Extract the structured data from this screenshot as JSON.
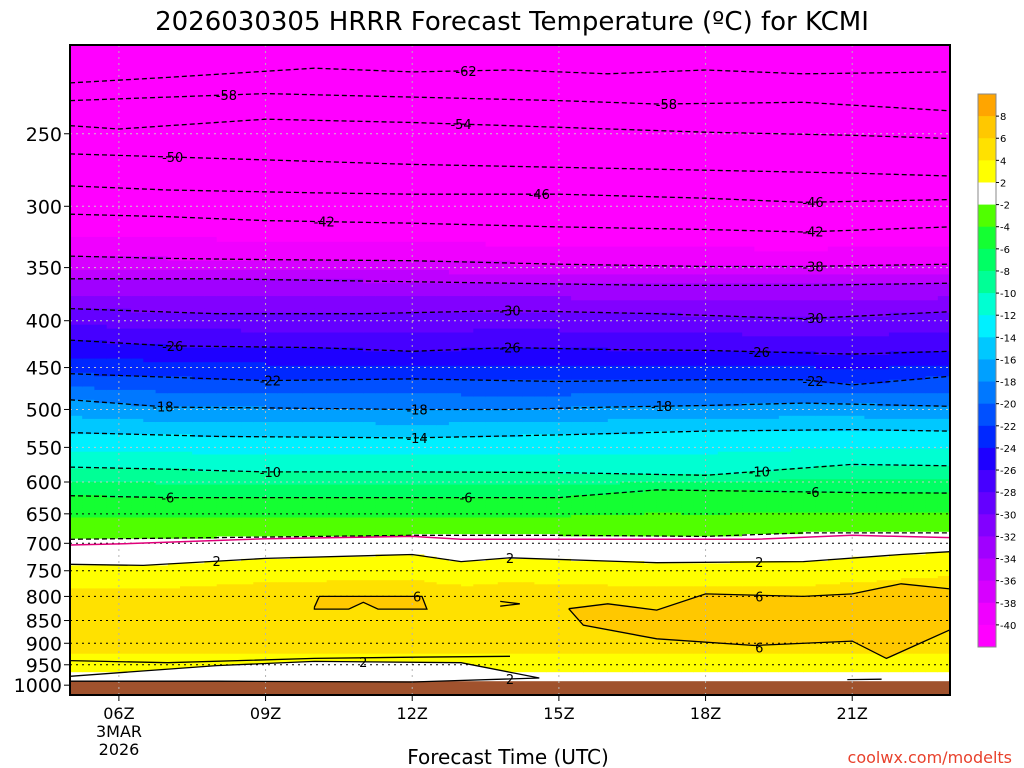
{
  "chart_data": {
    "type": "area",
    "title": "2026030305 HRRR Forecast Temperature (ºC) for KCMI",
    "xlabel": "Forecast Time (UTC)",
    "ylabel": "",
    "credit": "coolwx.com/modelts",
    "date_label": [
      "3MAR",
      "2026"
    ],
    "x_ticks": [
      {
        "hour": 6,
        "label": "06Z"
      },
      {
        "hour": 9,
        "label": "09Z"
      },
      {
        "hour": 12,
        "label": "12Z"
      },
      {
        "hour": 15,
        "label": "15Z"
      },
      {
        "hour": 18,
        "label": "18Z"
      },
      {
        "hour": 21,
        "label": "21Z"
      }
    ],
    "xlim": [
      5,
      23
    ],
    "y_ticks": [
      250,
      300,
      350,
      400,
      450,
      500,
      550,
      600,
      650,
      700,
      750,
      800,
      850,
      900,
      950,
      1000
    ],
    "ylim_pressure_hpa": [
      200,
      1025
    ],
    "surface_pressure_hpa": 990,
    "color_scale": {
      "bins": [
        {
          "lo": -44,
          "hi": -40,
          "color": "#ff00ff"
        },
        {
          "lo": -40,
          "hi": -38,
          "color": "#f000ff"
        },
        {
          "lo": -38,
          "hi": -36,
          "color": "#d700ff"
        },
        {
          "lo": -36,
          "hi": -34,
          "color": "#be00ff"
        },
        {
          "lo": -34,
          "hi": -32,
          "color": "#a000ff"
        },
        {
          "lo": -32,
          "hi": -30,
          "color": "#8200ff"
        },
        {
          "lo": -30,
          "hi": -28,
          "color": "#6400ff"
        },
        {
          "lo": -28,
          "hi": -26,
          "color": "#4600ff"
        },
        {
          "lo": -26,
          "hi": -24,
          "color": "#1e00ff"
        },
        {
          "lo": -24,
          "hi": -22,
          "color": "#0028ff"
        },
        {
          "lo": -22,
          "hi": -20,
          "color": "#0050ff"
        },
        {
          "lo": -20,
          "hi": -18,
          "color": "#0078ff"
        },
        {
          "lo": -18,
          "hi": -16,
          "color": "#00a0ff"
        },
        {
          "lo": -16,
          "hi": -14,
          "color": "#00c8ff"
        },
        {
          "lo": -14,
          "hi": -12,
          "color": "#00f0ff"
        },
        {
          "lo": -12,
          "hi": -10,
          "color": "#00ffd2"
        },
        {
          "lo": -10,
          "hi": -8,
          "color": "#00ff96"
        },
        {
          "lo": -8,
          "hi": -6,
          "color": "#00ff64"
        },
        {
          "lo": -6,
          "hi": -4,
          "color": "#14ff32"
        },
        {
          "lo": -4,
          "hi": -2,
          "color": "#50ff00"
        },
        {
          "lo": -2,
          "hi": 2,
          "color": "#ffffff"
        },
        {
          "lo": 2,
          "hi": 4,
          "color": "#ffff00"
        },
        {
          "lo": 4,
          "hi": 6,
          "color": "#ffe100"
        },
        {
          "lo": 6,
          "hi": 8,
          "color": "#ffc800"
        },
        {
          "lo": 8,
          "hi": 10,
          "color": "#ffa500"
        }
      ],
      "labels": [
        "8",
        "6",
        "4",
        "2",
        "-2",
        "-4",
        "-6",
        "-8",
        "-10",
        "-12",
        "-14",
        "-16",
        "-18",
        "-20",
        "-22",
        "-24",
        "-26",
        "-28",
        "-30",
        "-32",
        "-34",
        "-36",
        "-38",
        "-40"
      ]
    },
    "ground_color": "#a0522d",
    "freezing_line_color": "#e0007a",
    "isotherms": [
      {
        "value": -62,
        "style": "dashed",
        "points": [
          [
            5,
            220
          ],
          [
            7,
            217
          ],
          [
            10,
            212
          ],
          [
            12,
            214
          ],
          [
            14,
            213
          ],
          [
            16,
            215
          ],
          [
            18,
            213
          ],
          [
            20,
            215
          ],
          [
            23,
            214
          ]
        ],
        "labels": [
          {
            "x": 13.1,
            "text": "-62"
          }
        ]
      },
      {
        "value": -58,
        "style": "dashed",
        "points": [
          [
            5,
            230
          ],
          [
            7,
            228
          ],
          [
            9,
            226
          ],
          [
            12,
            228
          ],
          [
            15,
            230
          ],
          [
            17,
            232
          ],
          [
            20,
            231
          ],
          [
            23,
            236
          ]
        ],
        "labels": [
          {
            "x": 8.2,
            "text": "-58"
          },
          {
            "x": 17.2,
            "text": "-58"
          }
        ]
      },
      {
        "value": -54,
        "style": "dashed",
        "points": [
          [
            5,
            245
          ],
          [
            6,
            247
          ],
          [
            9,
            241
          ],
          [
            12,
            243
          ],
          [
            15,
            246
          ],
          [
            18,
            249
          ],
          [
            21,
            251
          ],
          [
            23,
            253
          ]
        ],
        "labels": [
          {
            "x": 13.0,
            "text": "-54"
          }
        ]
      },
      {
        "value": -50,
        "style": "dashed",
        "points": [
          [
            5,
            263
          ],
          [
            7,
            265
          ],
          [
            9,
            267
          ],
          [
            12,
            270
          ],
          [
            15,
            272
          ],
          [
            18,
            274
          ],
          [
            21,
            276
          ],
          [
            23,
            278
          ]
        ],
        "labels": [
          {
            "x": 7.1,
            "text": "-50"
          }
        ]
      },
      {
        "value": -46,
        "style": "dashed",
        "points": [
          [
            5,
            285
          ],
          [
            7,
            288
          ],
          [
            10,
            290
          ],
          [
            12,
            291
          ],
          [
            15,
            291
          ],
          [
            18,
            294
          ],
          [
            20,
            297
          ],
          [
            23,
            295
          ]
        ],
        "labels": [
          {
            "x": 14.6,
            "text": "-46"
          },
          {
            "x": 20.2,
            "text": "-46"
          }
        ]
      },
      {
        "value": -42,
        "style": "dashed",
        "points": [
          [
            5,
            306
          ],
          [
            7,
            308
          ],
          [
            9,
            311
          ],
          [
            12,
            313
          ],
          [
            15,
            316
          ],
          [
            18,
            318
          ],
          [
            20,
            320
          ],
          [
            23,
            316
          ]
        ],
        "labels": [
          {
            "x": 10.2,
            "text": "-42"
          },
          {
            "x": 20.2,
            "text": "-42"
          }
        ]
      },
      {
        "value": -38,
        "style": "dashed",
        "points": [
          [
            5,
            340
          ],
          [
            7,
            342
          ],
          [
            9,
            343
          ],
          [
            12,
            344
          ],
          [
            15,
            347
          ],
          [
            18,
            349
          ],
          [
            20,
            349
          ],
          [
            23,
            347
          ]
        ],
        "labels": [
          {
            "x": 20.2,
            "text": "-38"
          }
        ]
      },
      {
        "value": -34,
        "style": "dashed",
        "points": [
          [
            5,
            360
          ],
          [
            8,
            360
          ],
          [
            11,
            362
          ],
          [
            14,
            364
          ],
          [
            17,
            366
          ],
          [
            20,
            366
          ],
          [
            23,
            364
          ]
        ],
        "labels": []
      },
      {
        "value": -30,
        "style": "dashed",
        "points": [
          [
            5,
            388
          ],
          [
            8,
            393
          ],
          [
            11,
            393
          ],
          [
            14,
            390
          ],
          [
            17,
            393
          ],
          [
            20,
            398
          ],
          [
            23,
            391
          ]
        ],
        "labels": [
          {
            "x": 14.0,
            "text": "-30"
          },
          {
            "x": 20.2,
            "text": "-30"
          }
        ]
      },
      {
        "value": -26,
        "style": "dashed",
        "points": [
          [
            5,
            420
          ],
          [
            7,
            426
          ],
          [
            10,
            428
          ],
          [
            12,
            432
          ],
          [
            14,
            428
          ],
          [
            16,
            430
          ],
          [
            18,
            431
          ],
          [
            21,
            435
          ],
          [
            23,
            432
          ]
        ],
        "labels": [
          {
            "x": 7.1,
            "text": "-26"
          },
          {
            "x": 14.0,
            "text": "-26"
          },
          {
            "x": 19.1,
            "text": "-26"
          }
        ]
      },
      {
        "value": -22,
        "style": "dashed",
        "points": [
          [
            5,
            457
          ],
          [
            7,
            461
          ],
          [
            9,
            465
          ],
          [
            12,
            463
          ],
          [
            15,
            466
          ],
          [
            18,
            464
          ],
          [
            20,
            464
          ],
          [
            21,
            470
          ],
          [
            23,
            460
          ]
        ],
        "labels": [
          {
            "x": 9.1,
            "text": "-22"
          },
          {
            "x": 20.2,
            "text": "-22"
          }
        ]
      },
      {
        "value": -18,
        "style": "dashed",
        "points": [
          [
            5,
            488
          ],
          [
            7,
            497
          ],
          [
            9,
            498
          ],
          [
            12,
            500
          ],
          [
            14,
            500
          ],
          [
            16,
            497
          ],
          [
            18,
            495
          ],
          [
            20,
            492
          ],
          [
            23,
            496
          ]
        ],
        "labels": [
          {
            "x": 6.9,
            "text": "-18"
          },
          {
            "x": 12.1,
            "text": "-18"
          },
          {
            "x": 17.1,
            "text": "-18"
          }
        ]
      },
      {
        "value": -14,
        "style": "dashed",
        "points": [
          [
            5,
            530
          ],
          [
            8,
            535
          ],
          [
            12,
            537
          ],
          [
            15,
            533
          ],
          [
            18,
            528
          ],
          [
            21,
            526
          ],
          [
            23,
            528
          ]
        ],
        "labels": [
          {
            "x": 12.1,
            "text": "-14"
          }
        ]
      },
      {
        "value": -10,
        "style": "dashed",
        "points": [
          [
            5,
            578
          ],
          [
            7,
            581
          ],
          [
            9,
            585
          ],
          [
            12,
            585
          ],
          [
            15,
            586
          ],
          [
            18,
            590
          ],
          [
            21,
            574
          ],
          [
            23,
            576
          ]
        ],
        "labels": [
          {
            "x": 9.1,
            "text": "-10"
          },
          {
            "x": 19.1,
            "text": "-10"
          }
        ]
      },
      {
        "value": -6,
        "style": "dashed",
        "points": [
          [
            5,
            621
          ],
          [
            7,
            624
          ],
          [
            9,
            624
          ],
          [
            12,
            624
          ],
          [
            15,
            624
          ],
          [
            17,
            612
          ],
          [
            19,
            614
          ],
          [
            21,
            616
          ],
          [
            23,
            617
          ]
        ],
        "labels": [
          {
            "x": 7.0,
            "text": "-6"
          },
          {
            "x": 13.1,
            "text": "-6"
          },
          {
            "x": 20.2,
            "text": "-6"
          }
        ]
      },
      {
        "value": -2,
        "style": "dashed",
        "points": [
          [
            5,
            693
          ],
          [
            8,
            690
          ],
          [
            12,
            686
          ],
          [
            15,
            686
          ],
          [
            18,
            688
          ],
          [
            20,
            682
          ],
          [
            23,
            682
          ]
        ],
        "labels": []
      },
      {
        "value": 0,
        "style": "solid",
        "points": [
          [
            5,
            703
          ],
          [
            6,
            701
          ],
          [
            9,
            692
          ],
          [
            12,
            688
          ],
          [
            13,
            693
          ],
          [
            16,
            693
          ],
          [
            19,
            693
          ],
          [
            21,
            686
          ],
          [
            23,
            690
          ]
        ],
        "labels": []
      },
      {
        "value": 2,
        "style": "solid",
        "points": [
          [
            5,
            738
          ],
          [
            6.5,
            740
          ],
          [
            9,
            727
          ],
          [
            12,
            720
          ],
          [
            13,
            733
          ],
          [
            14,
            726
          ],
          [
            17,
            735
          ],
          [
            20,
            733
          ],
          [
            22,
            720
          ],
          [
            23,
            715
          ]
        ],
        "labels": [
          {
            "x": 8.0,
            "text": "2"
          },
          {
            "x": 14.0,
            "text": "2"
          },
          {
            "x": 19.1,
            "text": "2"
          }
        ]
      },
      {
        "value": 2,
        "style": "solid",
        "points": [
          [
            5,
            978
          ],
          [
            8,
            952
          ],
          [
            10,
            942
          ],
          [
            13,
            945
          ],
          [
            14.6,
            982
          ],
          [
            12,
            992
          ],
          [
            8,
            990
          ],
          [
            5,
            990
          ]
        ],
        "labels": [
          {
            "x": 11.0,
            "text": "2"
          },
          {
            "x": 14.0,
            "text": "2"
          }
        ]
      },
      {
        "value": 2,
        "style": "solid",
        "points": [
          [
            5,
            940
          ],
          [
            7,
            945
          ],
          [
            10,
            935
          ],
          [
            12,
            932
          ],
          [
            14,
            930
          ]
        ],
        "labels": []
      },
      {
        "value": 2,
        "style": "solid",
        "points": [
          [
            20.9,
            986
          ],
          [
            21.6,
            985
          ]
        ],
        "labels": []
      },
      {
        "value": 6,
        "style": "solid",
        "points": [
          [
            10,
            822
          ],
          [
            10.1,
            800
          ],
          [
            12.2,
            800
          ],
          [
            12.3,
            826
          ],
          [
            11.3,
            826
          ],
          [
            11,
            812
          ],
          [
            10.7,
            826
          ],
          [
            10,
            826
          ],
          [
            10,
            822
          ]
        ],
        "labels": [
          {
            "x": 12.1,
            "text": "6"
          }
        ]
      },
      {
        "value": 6,
        "style": "solid",
        "points": [
          [
            13.8,
            810
          ],
          [
            14.2,
            815
          ],
          [
            13.8,
            820
          ]
        ],
        "labels": []
      },
      {
        "value": 6,
        "style": "solid",
        "points": [
          [
            15.2,
            825
          ],
          [
            16,
            815
          ],
          [
            17,
            828
          ],
          [
            18,
            795
          ],
          [
            20,
            800
          ],
          [
            21,
            795
          ],
          [
            22,
            775
          ],
          [
            23,
            785
          ],
          [
            23,
            870
          ],
          [
            21.7,
            935
          ],
          [
            21,
            895
          ],
          [
            19,
            905
          ],
          [
            17,
            890
          ],
          [
            15.5,
            860
          ],
          [
            15.2,
            825
          ]
        ],
        "labels": [
          {
            "x": 19.1,
            "text": "6"
          },
          {
            "x": 19.1,
            "text": "6"
          }
        ]
      }
    ]
  }
}
